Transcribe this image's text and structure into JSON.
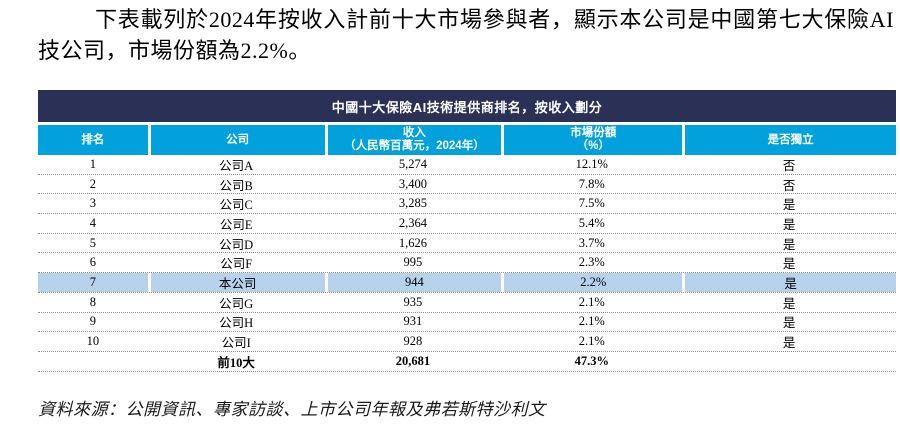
{
  "intro": {
    "text": "下表載列於2024年按收入計前十大市場參與者，顯示本公司是中國第七大保險AI技公司，市場份額為2.2%。"
  },
  "table": {
    "title": "中國十大保險AI技術提供商排名，按收入劃分",
    "columns": [
      {
        "label": "排名",
        "sub": ""
      },
      {
        "label": "公司",
        "sub": ""
      },
      {
        "label": "收入",
        "sub": "（人民幣百萬元，2024年）"
      },
      {
        "label": "市場份額",
        "sub": "（%）"
      },
      {
        "label": "是否獨立",
        "sub": ""
      }
    ],
    "rows": [
      {
        "rank": "1",
        "company": "公司A",
        "revenue": "5,274",
        "share": "12.1%",
        "independent": "否",
        "highlight": false
      },
      {
        "rank": "2",
        "company": "公司B",
        "revenue": "3,400",
        "share": "7.8%",
        "independent": "否",
        "highlight": false
      },
      {
        "rank": "3",
        "company": "公司C",
        "revenue": "3,285",
        "share": "7.5%",
        "independent": "是",
        "highlight": false
      },
      {
        "rank": "4",
        "company": "公司E",
        "revenue": "2,364",
        "share": "5.4%",
        "independent": "是",
        "highlight": false
      },
      {
        "rank": "5",
        "company": "公司D",
        "revenue": "1,626",
        "share": "3.7%",
        "independent": "是",
        "highlight": false
      },
      {
        "rank": "6",
        "company": "公司F",
        "revenue": "995",
        "share": "2.3%",
        "independent": "是",
        "highlight": false
      },
      {
        "rank": "7",
        "company": "本公司",
        "revenue": "944",
        "share": "2.2%",
        "independent": "是",
        "highlight": true
      },
      {
        "rank": "8",
        "company": "公司G",
        "revenue": "935",
        "share": "2.1%",
        "independent": "是",
        "highlight": false
      },
      {
        "rank": "9",
        "company": "公司H",
        "revenue": "931",
        "share": "2.1%",
        "independent": "是",
        "highlight": false
      },
      {
        "rank": "10",
        "company": "公司I",
        "revenue": "928",
        "share": "2.1%",
        "independent": "是",
        "highlight": false
      }
    ],
    "total": {
      "rank": "",
      "company": "前10大",
      "revenue": "20,681",
      "share": "47.3%",
      "independent": ""
    }
  },
  "source": {
    "text": "資料來源：公開資訊、專家訪談、上市公司年報及弗若斯特沙利文"
  },
  "colors": {
    "title_bar": "#2B3156",
    "header_bar": "#00A1DC",
    "highlight_row": "#B7D3EC"
  }
}
